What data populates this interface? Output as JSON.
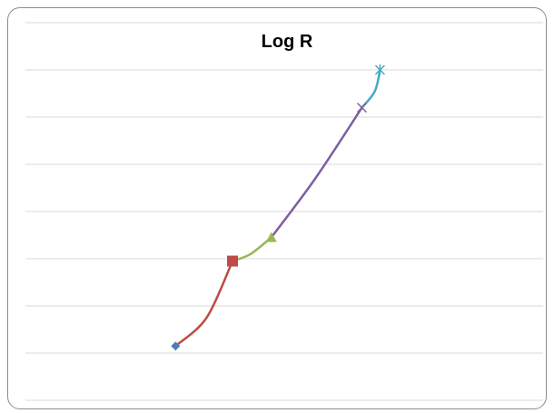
{
  "chart_data": {
    "type": "line",
    "title": "Log R",
    "xlabel": "",
    "ylabel": "",
    "grid": true,
    "legend": "none",
    "ylim": [
      0,
      8
    ],
    "xlim": [
      0,
      10
    ],
    "series": [
      {
        "color": "#4a7ebb",
        "marker": "diamond",
        "points": [
          [
            2.9,
            1.15
          ]
        ]
      },
      {
        "color": "#be4b48",
        "marker": "square",
        "points": [
          [
            2.9,
            1.15
          ],
          [
            3.5,
            1.75
          ],
          [
            4.0,
            2.95
          ]
        ]
      },
      {
        "color": "#98b954",
        "marker": "triangle",
        "points": [
          [
            4.0,
            2.95
          ],
          [
            4.35,
            3.1
          ],
          [
            4.75,
            3.45
          ]
        ]
      },
      {
        "color": "#7d60a0",
        "marker": "x",
        "points": [
          [
            4.75,
            3.45
          ],
          [
            5.6,
            4.7
          ],
          [
            6.5,
            6.2
          ]
        ]
      },
      {
        "color": "#46aac5",
        "marker": "star",
        "points": [
          [
            6.5,
            6.2
          ],
          [
            6.75,
            6.55
          ],
          [
            6.85,
            7.0
          ]
        ]
      }
    ]
  }
}
